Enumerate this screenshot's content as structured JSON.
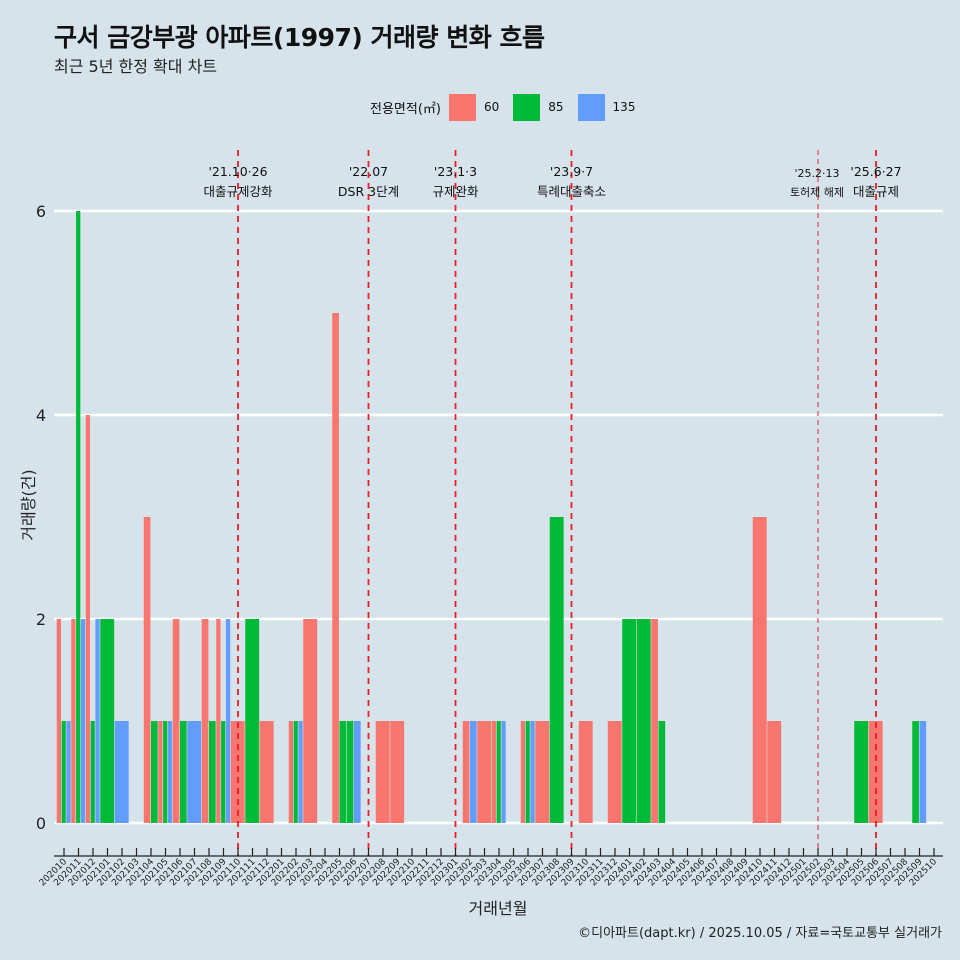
{
  "title": "구서 금강부광 아파트(1997) 거래량 변화 흐름",
  "subtitle": "최근 5년 한정 확대 차트",
  "caption": "©디아파트(dapt.kr) / 2025.10.05 / 자료=국토교통부 실거래가",
  "legend": {
    "title": "전용면적(㎡)",
    "items": [
      {
        "label": "60",
        "color": "#F8766D"
      },
      {
        "label": "85",
        "color": "#00BA38"
      },
      {
        "label": "135",
        "color": "#619CFF"
      }
    ]
  },
  "chart_data": {
    "type": "bar",
    "title": "구서 금강부광 아파트(1997) 거래량 변화 흐름",
    "xlabel": "거래년월",
    "ylabel": "거래량(건)",
    "ylim": [
      0,
      6
    ],
    "yticks": [
      "0",
      "2",
      "4",
      "6"
    ],
    "grid": true,
    "legend_position": "top",
    "categories": [
      "202010",
      "202011",
      "202012",
      "202101",
      "202102",
      "202103",
      "202104",
      "202105",
      "202106",
      "202107",
      "202108",
      "202109",
      "202110",
      "202111",
      "202112",
      "202201",
      "202202",
      "202203",
      "202204",
      "202205",
      "202206",
      "202207",
      "202208",
      "202209",
      "202210",
      "202211",
      "202212",
      "202301",
      "202302",
      "202303",
      "202304",
      "202305",
      "202306",
      "202307",
      "202308",
      "202309",
      "202310",
      "202311",
      "202312",
      "202401",
      "202402",
      "202403",
      "202404",
      "202405",
      "202406",
      "202407",
      "202408",
      "202409",
      "202410",
      "202411",
      "202412",
      "202501",
      "202502",
      "202503",
      "202504",
      "202505",
      "202506",
      "202507",
      "202508",
      "202509",
      "202510"
    ],
    "series": [
      {
        "name": "60",
        "values": [
          2,
          2,
          4,
          0,
          0,
          0,
          3,
          1,
          2,
          0,
          2,
          2,
          1,
          0,
          1,
          0,
          1,
          2,
          0,
          5,
          0,
          0,
          1,
          1,
          0,
          0,
          0,
          0,
          1,
          1,
          1,
          0,
          1,
          1,
          0,
          0,
          1,
          0,
          1,
          0,
          0,
          2,
          0,
          0,
          0,
          0,
          0,
          0,
          3,
          1,
          0,
          0,
          0,
          0,
          0,
          0,
          1,
          0,
          0,
          0,
          0
        ]
      },
      {
        "name": "85",
        "values": [
          1,
          6,
          1,
          2,
          0,
          0,
          1,
          1,
          1,
          0,
          1,
          1,
          0,
          2,
          0,
          0,
          1,
          0,
          0,
          1,
          1,
          0,
          0,
          0,
          0,
          0,
          0,
          0,
          0,
          0,
          1,
          0,
          1,
          0,
          3,
          0,
          0,
          0,
          0,
          2,
          2,
          1,
          0,
          0,
          0,
          0,
          0,
          0,
          0,
          0,
          0,
          0,
          0,
          0,
          0,
          1,
          0,
          0,
          0,
          1,
          0
        ]
      },
      {
        "name": "135",
        "values": [
          1,
          2,
          2,
          0,
          1,
          0,
          0,
          1,
          0,
          1,
          0,
          2,
          0,
          0,
          0,
          0,
          1,
          0,
          0,
          0,
          1,
          0,
          0,
          0,
          0,
          0,
          0,
          0,
          1,
          0,
          1,
          0,
          1,
          0,
          0,
          0,
          0,
          0,
          0,
          0,
          0,
          0,
          0,
          0,
          0,
          0,
          0,
          0,
          0,
          0,
          0,
          0,
          0,
          0,
          0,
          0,
          0,
          0,
          0,
          1,
          0
        ]
      }
    ],
    "annotations": [
      {
        "month": "202110",
        "date": "'21.10·26",
        "label": "대출규제강화",
        "style": "dashed"
      },
      {
        "month": "202207",
        "date": "'22.07",
        "label": "DSR 3단계",
        "style": "dashed"
      },
      {
        "month": "202301",
        "date": "'23.1·3",
        "label": "규제완화",
        "style": "dashed"
      },
      {
        "month": "202309",
        "date": "'23.9·7",
        "label": "특례대출축소",
        "style": "dashed"
      },
      {
        "month": "202502",
        "date": "'25.2·13",
        "label": "토허제 해제",
        "style": "thin"
      },
      {
        "month": "202506",
        "date": "'25.6·27",
        "label": "대출규제",
        "style": "dashed"
      }
    ]
  }
}
